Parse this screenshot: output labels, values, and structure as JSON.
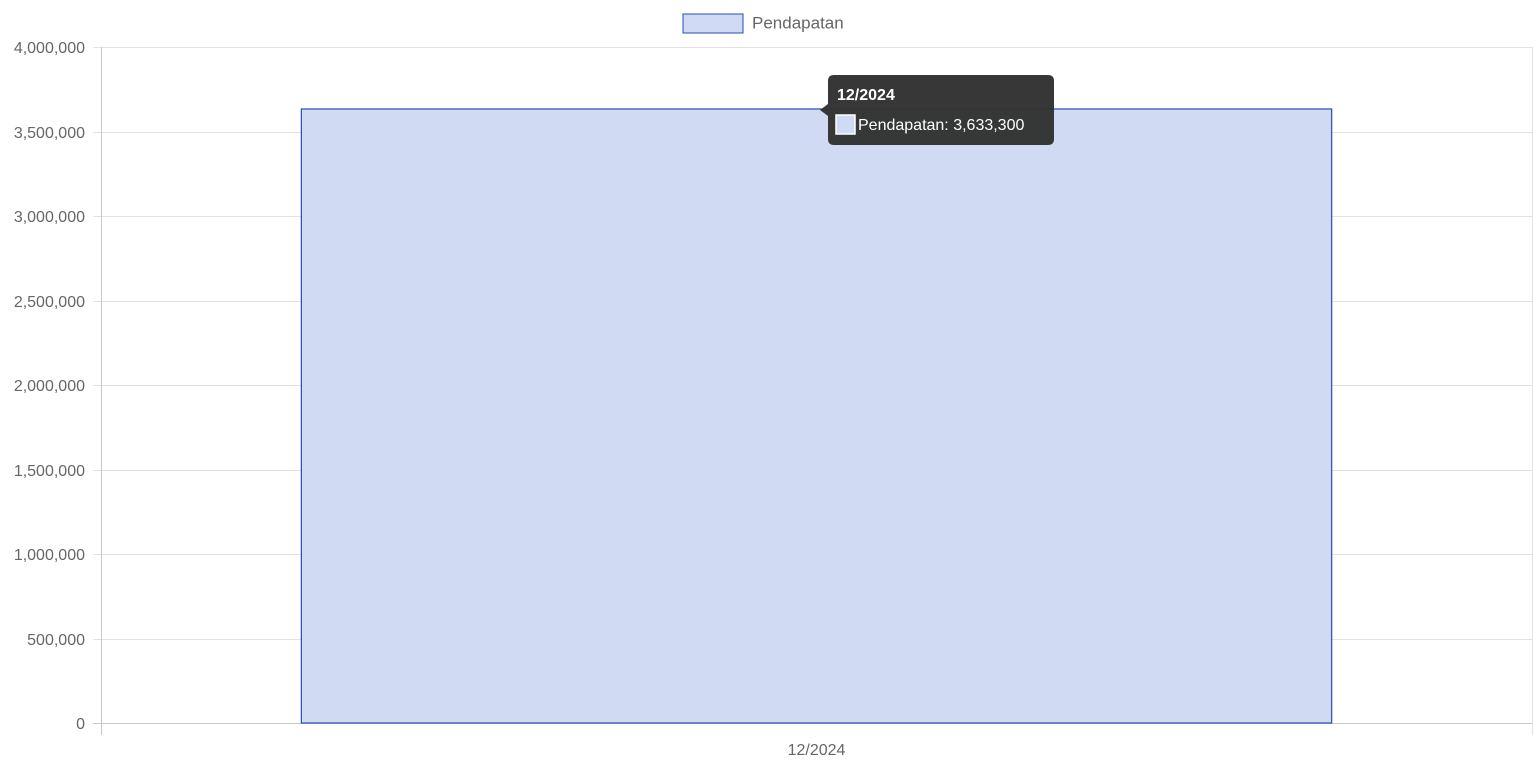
{
  "chart_data": {
    "type": "bar",
    "categories": [
      "12/2024"
    ],
    "series": [
      {
        "name": "Pendapatan",
        "values": [
          3633300
        ]
      }
    ],
    "ylim": [
      0,
      4000000
    ],
    "yticks": [
      0,
      500000,
      1000000,
      1500000,
      2000000,
      2500000,
      3000000,
      3500000,
      4000000
    ],
    "grid": true,
    "legend_position": "top-center",
    "colors": {
      "bar_fill": "#d0daf3",
      "bar_border": "#2a4db0",
      "grid": "#e2e2e2",
      "axis": "#c8c8c8",
      "tick_text": "#666666",
      "tooltip_bg": "#333333"
    }
  },
  "tooltip": {
    "title": "12/2024",
    "body": "Pendapatan: 3,633,300"
  }
}
